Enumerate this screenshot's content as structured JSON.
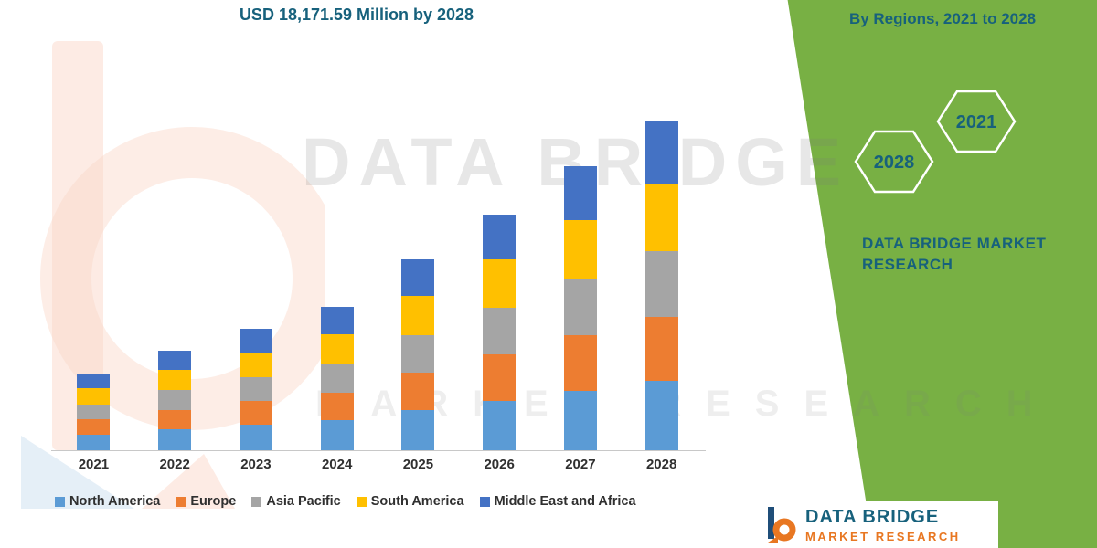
{
  "colors": {
    "green_panel": "#78B044",
    "teal_text": "#17617C",
    "axis_line": "#C8C8C8",
    "label_text": "#303030",
    "logo_orange": "#E87722",
    "logo_navy": "#1F4E79"
  },
  "header": {
    "title": "USD 18,171.59 Million by 2028",
    "right_title": "By Regions, 2021 to 2028"
  },
  "side_panel": {
    "hexagons": [
      "2021",
      "2028"
    ],
    "brand_line1": "DATA BRIDGE MARKET",
    "brand_line2": "RESEARCH"
  },
  "watermark": {
    "line1": "DATA BRIDGE",
    "line2": "MARKET RESEARCH"
  },
  "footer_logo": {
    "brand": "DATA BRIDGE",
    "sub_brand": "MARKET RESEARCH"
  },
  "chart_data": {
    "type": "bar",
    "stacked": true,
    "title": "USD 18,171.59 Million by 2028",
    "xlabel": "",
    "ylabel": "",
    "grid": false,
    "legend_position": "bottom",
    "ylim": [
      0,
      18171.59
    ],
    "categories": [
      "2021",
      "2022",
      "2023",
      "2024",
      "2025",
      "2026",
      "2027",
      "2028"
    ],
    "series": [
      {
        "name": "North America",
        "color": "#5B9BD5",
        "values": [
          885,
          1151,
          1407,
          1663,
          2217,
          2740,
          3294,
          3816
        ]
      },
      {
        "name": "Europe",
        "color": "#ED7D31",
        "values": [
          822,
          1069,
          1306,
          1544,
          2059,
          2544,
          3058,
          3543.5
        ]
      },
      {
        "name": "Asia Pacific",
        "color": "#A5A5A5",
        "values": [
          843,
          1096,
          1340,
          1584,
          2111,
          2609,
          3137,
          3634.3
        ]
      },
      {
        "name": "South America",
        "color": "#FFC000",
        "values": [
          864,
          1124,
          1374,
          1623,
          2164,
          2674,
          3215,
          3725.2
        ]
      },
      {
        "name": "Middle East and Africa",
        "color": "#4472C4",
        "values": [
          800,
          1042,
          1273,
          1504,
          2006,
          2479,
          2980,
          3452.59
        ]
      }
    ]
  }
}
